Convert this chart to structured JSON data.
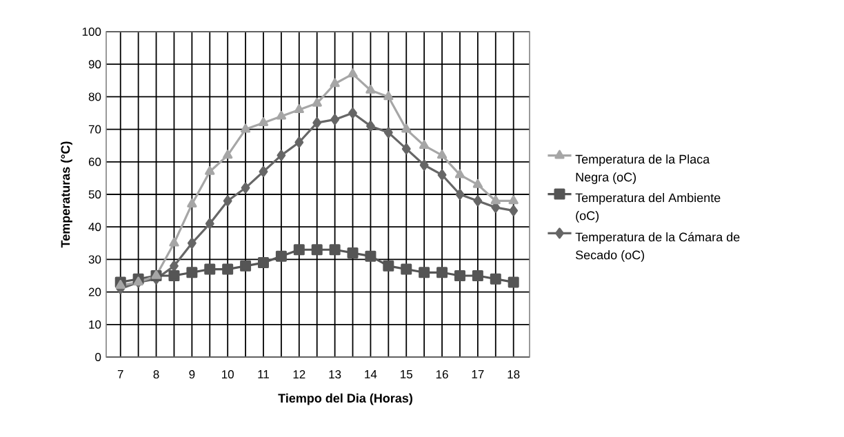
{
  "chart_data": {
    "type": "line",
    "xlabel": "Tiempo del Dia (Horas)",
    "ylabel": "Temperaturas (°C)",
    "categories": [
      "7",
      null,
      "8",
      null,
      "9",
      null,
      "10",
      null,
      "11",
      null,
      "12",
      null,
      "13",
      null,
      "14",
      null,
      "15",
      null,
      "16",
      null,
      "17",
      null,
      "18"
    ],
    "series": [
      {
        "name": "Temperatura de la Placa Negra (oC)",
        "color": "#a6a6a6",
        "marker": "triangle",
        "values": [
          22,
          23,
          25,
          35,
          47,
          57,
          62,
          70,
          72,
          74,
          76,
          78,
          84,
          87,
          82,
          80,
          70,
          65,
          62,
          56,
          53,
          48,
          48
        ]
      },
      {
        "name": "Temperatura del Ambiente (oC)",
        "color": "#555555",
        "marker": "square",
        "values": [
          23,
          24,
          25,
          25,
          26,
          27,
          27,
          28,
          29,
          31,
          33,
          33,
          33,
          32,
          31,
          28,
          27,
          26,
          26,
          25,
          25,
          24,
          23
        ]
      },
      {
        "name": "Temperatura de la Cámara de Secado (oC)",
        "color": "#666666",
        "marker": "diamond",
        "values": [
          21,
          23,
          24,
          28,
          35,
          41,
          48,
          52,
          57,
          62,
          66,
          72,
          73,
          75,
          71,
          69,
          64,
          59,
          56,
          50,
          48,
          46,
          45
        ]
      }
    ],
    "ylim": [
      0,
      100
    ],
    "yticks": [
      0,
      10,
      20,
      30,
      40,
      50,
      60,
      70,
      80,
      90,
      100
    ],
    "grid": true,
    "legend": "right",
    "line_style": "solid"
  }
}
